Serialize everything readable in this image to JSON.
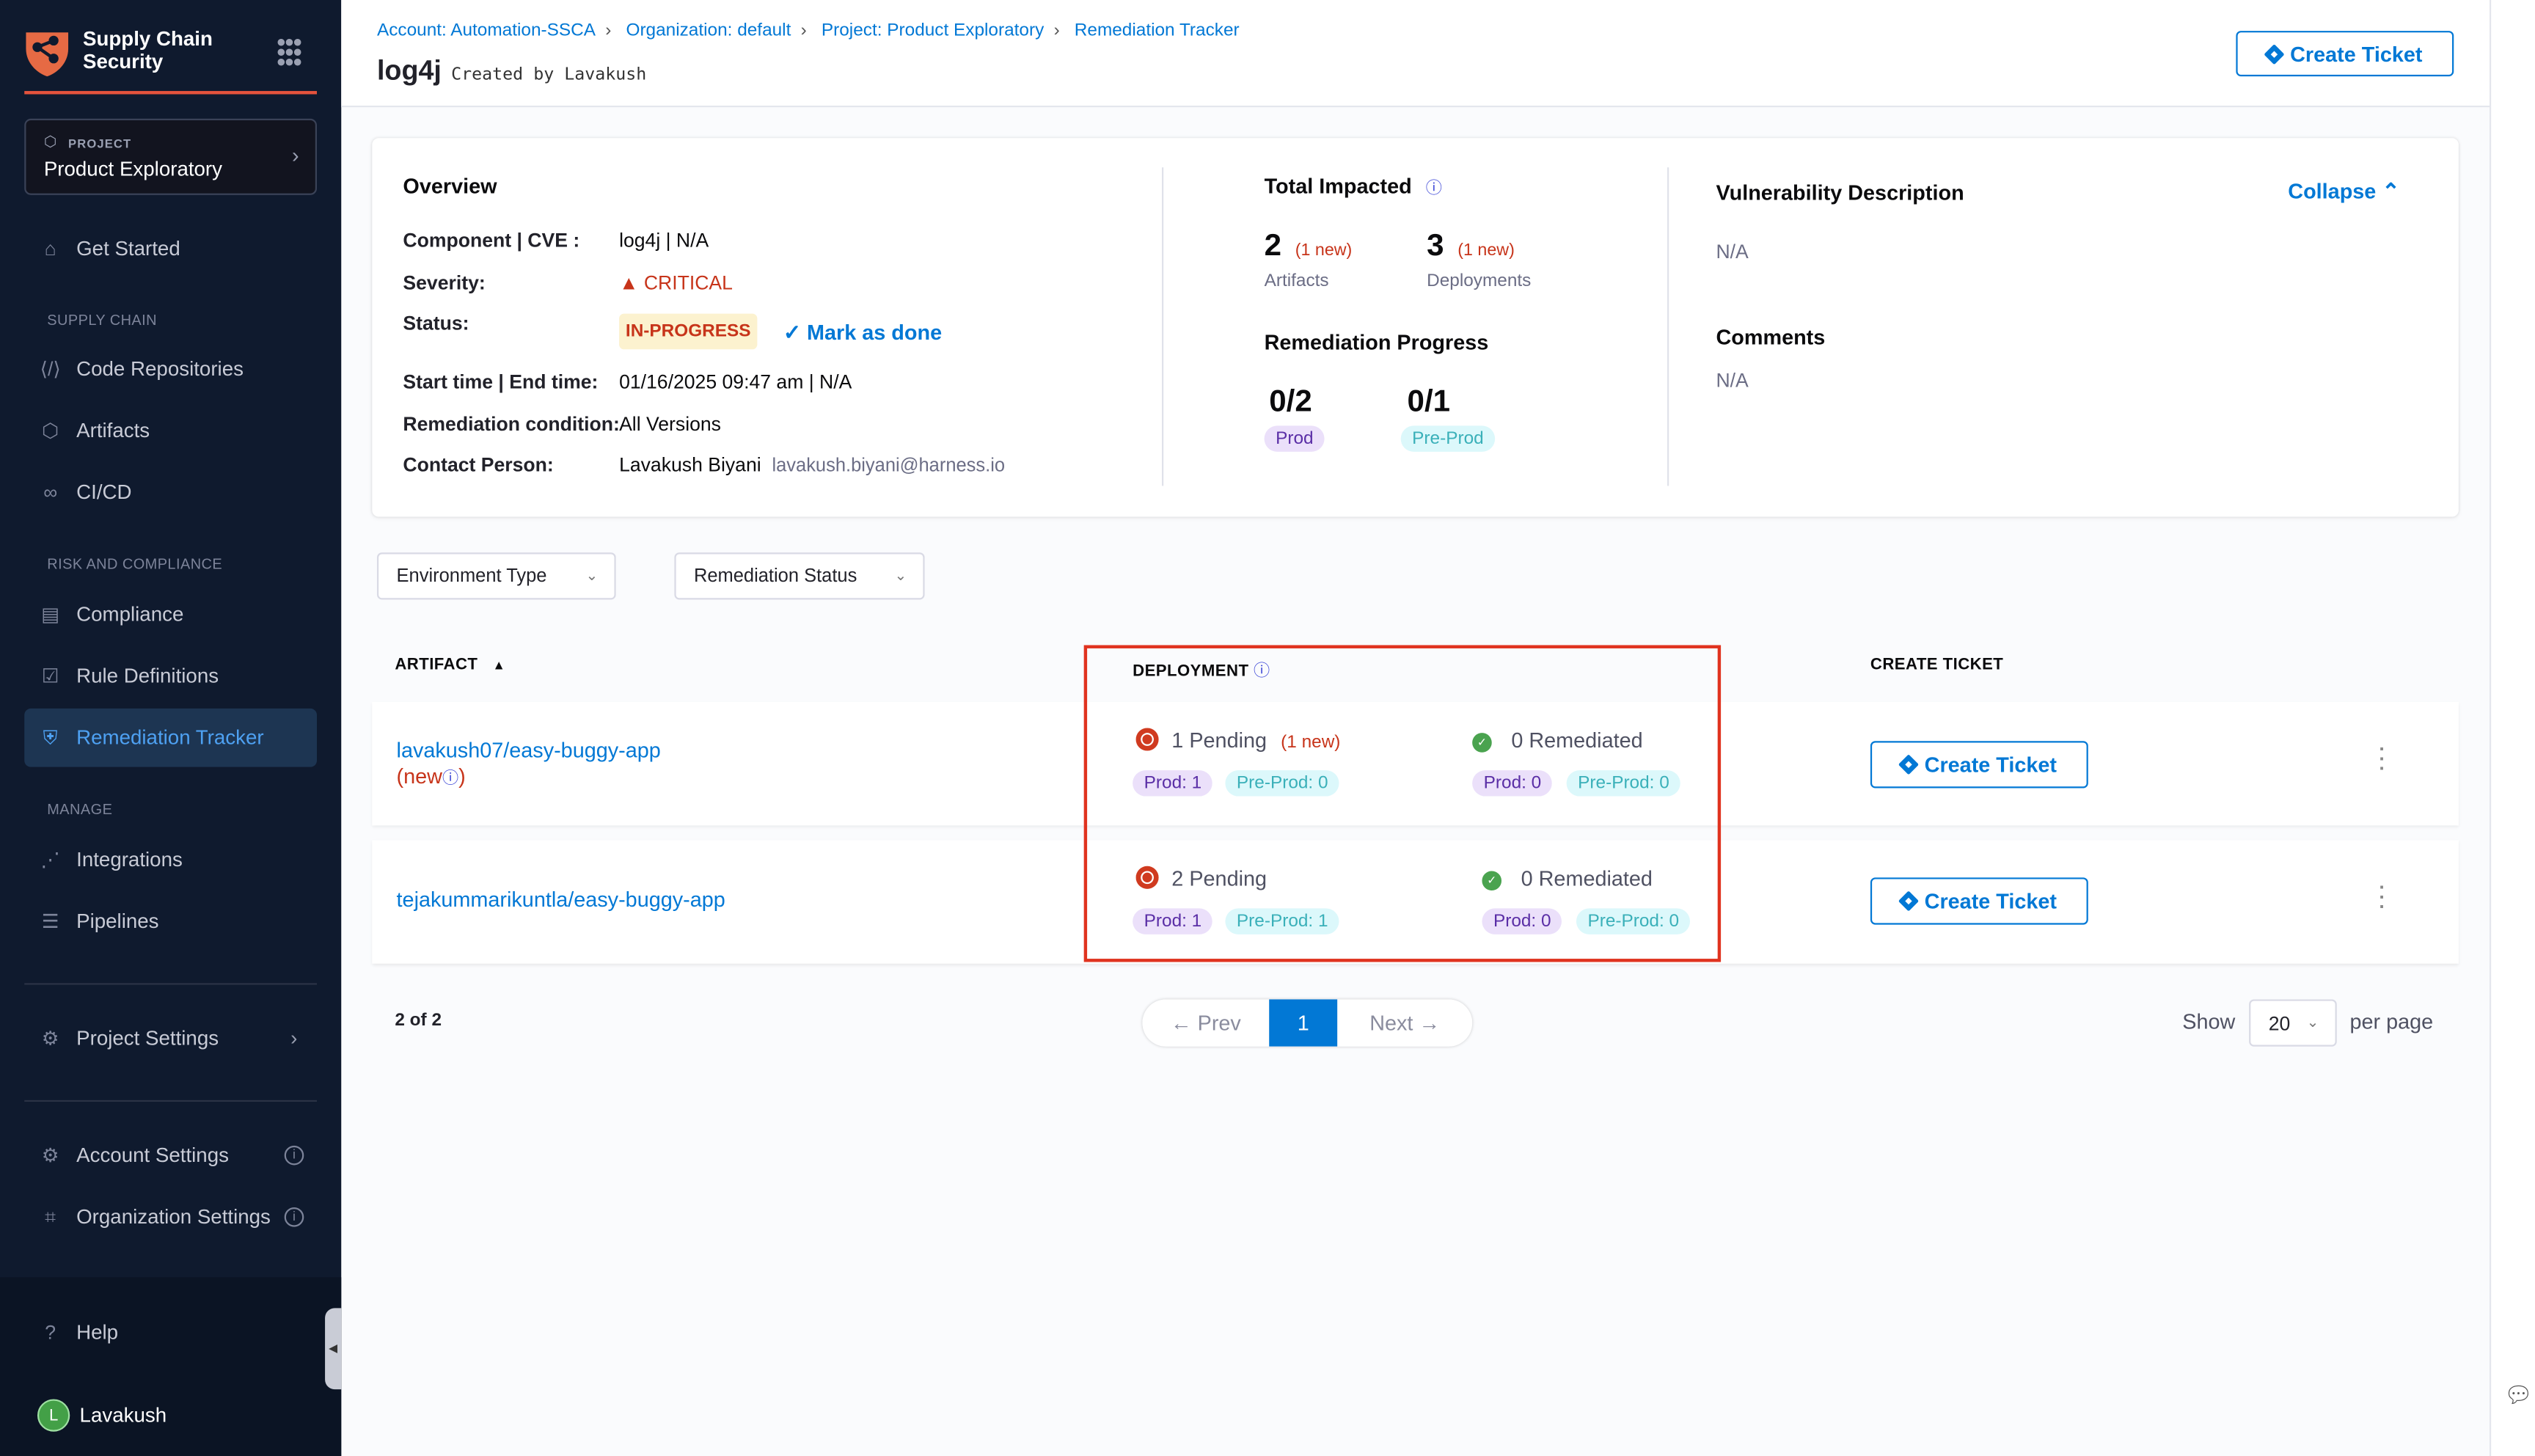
{
  "sidebar": {
    "brand": "Supply Chain Security",
    "project_label": "PROJECT",
    "project_name": "Product Exploratory",
    "get_started": "Get Started",
    "section_supply": "SUPPLY CHAIN",
    "code_repos": "Code Repositories",
    "artifacts": "Artifacts",
    "cicd": "CI/CD",
    "section_risk": "RISK AND COMPLIANCE",
    "compliance": "Compliance",
    "rule_defs": "Rule Definitions",
    "remediation_tracker": "Remediation Tracker",
    "section_manage": "MANAGE",
    "integrations": "Integrations",
    "pipelines": "Pipelines",
    "project_settings": "Project Settings",
    "account_settings": "Account Settings",
    "org_settings": "Organization Settings",
    "help": "Help",
    "user_initial": "L",
    "user_name": "Lavakush"
  },
  "header": {
    "breadcrumbs": [
      "Account: Automation-SSCA",
      "Organization: default",
      "Project: Product Exploratory",
      "Remediation Tracker"
    ],
    "title": "log4j",
    "created_by": "Created by Lavakush",
    "create_ticket": "Create Ticket"
  },
  "overview": {
    "title": "Overview",
    "component_label": "Component | CVE :",
    "component_value": "log4j | N/A",
    "severity_label": "Severity:",
    "severity_value": "CRITICAL",
    "status_label": "Status:",
    "status_value": "IN-PROGRESS",
    "mark_done": "Mark as done",
    "time_label": "Start time | End time:",
    "time_value": "01/16/2025 09:47 am | N/A",
    "condition_label": "Remediation condition:",
    "condition_value": "All Versions",
    "contact_label": "Contact Person:",
    "contact_name": "Lavakush Biyani",
    "contact_email": "lavakush.biyani@harness.io"
  },
  "impact": {
    "title": "Total Impacted",
    "artifacts_count": "2",
    "artifacts_new": "(1 new)",
    "artifacts_label": "Artifacts",
    "deployments_count": "3",
    "deployments_new": "(1 new)",
    "deployments_label": "Deployments",
    "progress_title": "Remediation Progress",
    "prod_progress": "0/2",
    "prod_label": "Prod",
    "preprod_progress": "0/1",
    "preprod_label": "Pre-Prod"
  },
  "description": {
    "title": "Vulnerability Description",
    "collapse": "Collapse",
    "value": "N/A",
    "comments_title": "Comments",
    "comments_value": "N/A"
  },
  "filters": {
    "environment_type": "Environment Type",
    "remediation_status": "Remediation Status"
  },
  "table": {
    "headers": {
      "artifact": "ARTIFACT",
      "deployment": "DEPLOYMENT",
      "create_ticket": "CREATE TICKET"
    },
    "rows": [
      {
        "artifact": "lavakush07/easy-buggy-app",
        "new_tag": "(new",
        "new_tag_close": ")",
        "pending": "1 Pending",
        "pending_new": "(1 new)",
        "pending_prod": "Prod: 1",
        "pending_preprod": "Pre-Prod: 0",
        "remediated": "0 Remediated",
        "rem_prod": "Prod: 0",
        "rem_preprod": "Pre-Prod: 0",
        "button": "Create Ticket"
      },
      {
        "artifact": "tejakummarikuntla/easy-buggy-app",
        "pending": "2 Pending",
        "pending_prod": "Prod: 1",
        "pending_preprod": "Pre-Prod: 1",
        "remediated": "0 Remediated",
        "rem_prod": "Prod: 0",
        "rem_preprod": "Pre-Prod: 0",
        "button": "Create Ticket"
      }
    ]
  },
  "pagination": {
    "summary": "2 of 2",
    "prev": "← Prev",
    "current": "1",
    "next": "Next →",
    "show": "Show",
    "page_size": "20",
    "per_page": "per page"
  },
  "colors": {
    "accent": "#0278d5",
    "sidebar": "#0f1a2e",
    "critical": "#c7341a",
    "highlight_box": "#e0331f"
  }
}
